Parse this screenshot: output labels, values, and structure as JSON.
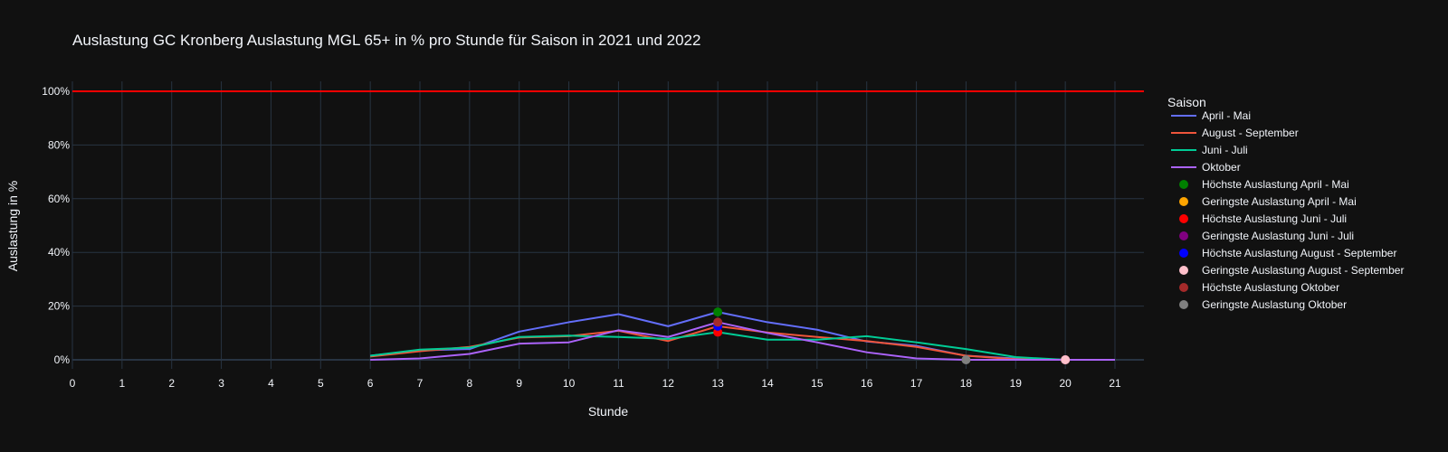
{
  "chart_data": {
    "type": "line",
    "title": "Auslastung GC Kronberg Auslastung MGL 65+ in % pro Stunde für Saison in 2021 und 2022",
    "xlabel": "Stunde",
    "ylabel": "Auslastung in %",
    "xlim": [
      0,
      21
    ],
    "ylim": [
      -7,
      100
    ],
    "x_ticks": [
      "0",
      "1",
      "2",
      "3",
      "4",
      "5",
      "6",
      "7",
      "8",
      "9",
      "10",
      "11",
      "12",
      "13",
      "14",
      "15",
      "16",
      "17",
      "18",
      "19",
      "20",
      "21"
    ],
    "y_ticks": [
      {
        "value": 0,
        "label": "0%"
      },
      {
        "value": 20,
        "label": "20%"
      },
      {
        "value": 40,
        "label": "40%"
      },
      {
        "value": 60,
        "label": "60%"
      },
      {
        "value": 80,
        "label": "80%"
      },
      {
        "value": 100,
        "label": "100%"
      }
    ],
    "reference_line": {
      "y": 100,
      "color": "#ff0000"
    },
    "grid": true,
    "legend_title": "Saison",
    "legend_position": "right",
    "series": [
      {
        "name": "April - Mai",
        "color": "#636efa",
        "x": [
          6,
          7,
          8,
          9,
          10,
          11,
          12,
          13,
          14,
          15,
          16,
          17,
          18,
          19,
          20,
          21
        ],
        "y": [
          1.5,
          3.5,
          4.0,
          10.5,
          14.0,
          17.0,
          12.5,
          17.8,
          14.0,
          11.2,
          6.8,
          5.2,
          1.5,
          0.5,
          0,
          0
        ]
      },
      {
        "name": "August - September",
        "color": "#ef553b",
        "x": [
          6,
          7,
          8,
          9,
          10,
          11,
          12,
          13,
          14,
          15,
          16,
          17,
          18,
          19,
          20,
          21
        ],
        "y": [
          1.2,
          3.2,
          4.8,
          8.3,
          8.8,
          10.8,
          7.0,
          12.5,
          10.2,
          8.5,
          7.0,
          4.8,
          1.5,
          0.2,
          0,
          0
        ]
      },
      {
        "name": "Juni - Juli",
        "color": "#00cc96",
        "x": [
          6,
          7,
          8,
          9,
          10,
          11,
          12,
          13,
          14,
          15,
          16,
          17,
          18,
          19,
          20,
          21
        ],
        "y": [
          1.5,
          3.8,
          4.5,
          8.5,
          9.0,
          8.5,
          7.8,
          10.3,
          7.5,
          7.5,
          8.8,
          6.5,
          4.0,
          1.0,
          0,
          0
        ]
      },
      {
        "name": "Oktober",
        "color": "#ab63fa",
        "x": [
          6,
          7,
          8,
          9,
          10,
          11,
          12,
          13,
          14,
          15,
          16,
          17,
          18,
          19,
          20,
          21
        ],
        "y": [
          0,
          0.5,
          2.2,
          6.0,
          6.5,
          11.0,
          8.5,
          14.0,
          10.0,
          6.5,
          2.8,
          0.5,
          0,
          0,
          0,
          0
        ]
      }
    ],
    "markers": [
      {
        "name": "Höchste Auslastung April - Mai",
        "color": "#008000",
        "x": 13,
        "y": 17.8
      },
      {
        "name": "Geringste Auslastung April - Mai",
        "color": "#ffa500",
        "x": 20,
        "y": 0
      },
      {
        "name": "Höchste Auslastung Juni - Juli",
        "color": "#ff0000",
        "x": 13,
        "y": 10.3
      },
      {
        "name": "Geringste Auslastung Juni - Juli",
        "color": "#800080",
        "x": 20,
        "y": 0
      },
      {
        "name": "Höchste Auslastung August - September",
        "color": "#0000ff",
        "x": 13,
        "y": 12.5
      },
      {
        "name": "Geringste Auslastung August - September",
        "color": "#ffc0cb",
        "x": 20,
        "y": 0
      },
      {
        "name": "Höchste Auslastung Oktober",
        "color": "#a52a2a",
        "x": 13,
        "y": 14.0
      },
      {
        "name": "Geringste Auslastung Oktober",
        "color": "#808080",
        "x": 18,
        "y": 0
      }
    ]
  }
}
